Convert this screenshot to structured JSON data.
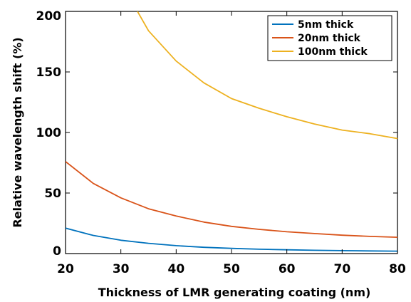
{
  "chart_data": {
    "type": "line",
    "title": "",
    "xlabel": "Thickness of LMR generating coating (nm)",
    "ylabel": "Relative wavelength shift (%)",
    "xlim": [
      20,
      80
    ],
    "ylim": [
      0,
      200
    ],
    "xticks": [
      "20",
      "30",
      "40",
      "50",
      "60",
      "70",
      "80"
    ],
    "yticks": [
      "0",
      "50",
      "100",
      "150",
      "200"
    ],
    "grid": false,
    "legend_position": "top-right",
    "series": [
      {
        "name": "5nm thick",
        "color": "#0072BD",
        "x": [
          20,
          25,
          30,
          35,
          40,
          45,
          50,
          55,
          60,
          65,
          70,
          75,
          80
        ],
        "y": [
          21,
          15,
          11,
          8.5,
          6.5,
          5.2,
          4.3,
          3.6,
          3.1,
          2.7,
          2.4,
          2.2,
          2.0
        ]
      },
      {
        "name": "20nm thick",
        "color": "#D95319",
        "x": [
          20,
          25,
          30,
          35,
          40,
          45,
          50,
          55,
          60,
          65,
          70,
          75,
          80
        ],
        "y": [
          76,
          58,
          46,
          37,
          31,
          26,
          22.5,
          20,
          18,
          16.5,
          15.2,
          14.2,
          13.5
        ]
      },
      {
        "name": "100nm thick",
        "color": "#EDB120",
        "x": [
          33,
          35,
          40,
          45,
          50,
          55,
          60,
          65,
          70,
          75,
          80
        ],
        "y": [
          200,
          184,
          159,
          141,
          128,
          120,
          113,
          107,
          102,
          99,
          95
        ]
      }
    ]
  }
}
